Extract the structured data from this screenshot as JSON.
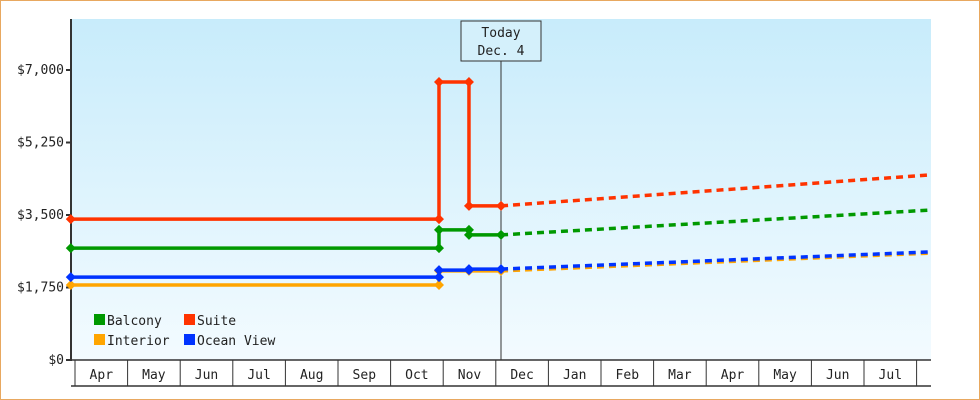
{
  "chart_data": {
    "type": "line",
    "title": "",
    "xlabel": "",
    "ylabel": "",
    "ylim": [
      0,
      8000
    ],
    "yticks": [
      0,
      1750,
      3500,
      5250,
      7000
    ],
    "ytick_labels": [
      "$0",
      "$1,750",
      "$3,500",
      "$5,250",
      "$7,000"
    ],
    "x_unit": "months since start of Apr",
    "xlim": [
      -0.08,
      16.27
    ],
    "month_labels": [
      "Apr",
      "May",
      "Jun",
      "Jul",
      "Aug",
      "Sep",
      "Oct",
      "Nov",
      "Dec",
      "Jan",
      "Feb",
      "Mar",
      "Apr",
      "May",
      "Jun",
      "Jul"
    ],
    "today": {
      "x": 8.1,
      "label_line1": "Today",
      "label_line2": "Dec. 4"
    },
    "legend": {
      "placement": "bottom-left"
    },
    "series": [
      {
        "name": "Balcony",
        "color": "#009900",
        "points": [
          [
            -0.08,
            2700
          ],
          [
            6.92,
            2700
          ],
          [
            6.92,
            3140
          ],
          [
            7.49,
            3140
          ],
          [
            7.49,
            3020
          ],
          [
            8.1,
            3020
          ]
        ],
        "forecast": [
          [
            8.1,
            3020
          ],
          [
            16.27,
            3620
          ]
        ]
      },
      {
        "name": "Suite",
        "color": "#ff3300",
        "points": [
          [
            -0.08,
            3400
          ],
          [
            6.92,
            3400
          ],
          [
            6.92,
            6710
          ],
          [
            7.49,
            6710
          ],
          [
            7.49,
            3720
          ],
          [
            8.1,
            3720
          ]
        ],
        "forecast": [
          [
            8.1,
            3720
          ],
          [
            16.27,
            4470
          ]
        ]
      },
      {
        "name": "Interior",
        "color": "#ffa500",
        "points": [
          [
            -0.08,
            1810
          ],
          [
            6.92,
            1810
          ],
          [
            6.92,
            2150
          ],
          [
            7.49,
            2150
          ],
          [
            8.1,
            2150
          ]
        ],
        "forecast": [
          [
            8.1,
            2150
          ],
          [
            16.27,
            2580
          ]
        ]
      },
      {
        "name": "Ocean View",
        "color": "#0033ff",
        "points": [
          [
            -0.08,
            2000
          ],
          [
            6.92,
            2000
          ],
          [
            6.92,
            2170
          ],
          [
            7.49,
            2170
          ],
          [
            7.49,
            2195
          ],
          [
            8.1,
            2195
          ]
        ],
        "forecast": [
          [
            8.1,
            2195
          ],
          [
            16.27,
            2610
          ]
        ]
      }
    ]
  }
}
